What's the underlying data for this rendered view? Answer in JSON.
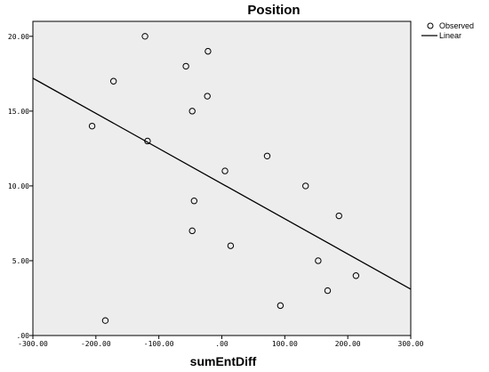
{
  "chart_data": {
    "type": "scatter",
    "title": "Position",
    "xlabel": "sumEntDiff",
    "ylabel": "",
    "xlim": [
      -300,
      300
    ],
    "ylim": [
      0,
      21
    ],
    "xticks": [
      -300,
      -200,
      -100,
      0,
      100,
      200,
      300
    ],
    "xtick_labels": [
      "-300.00",
      "-200.00",
      "-100.00",
      ".00",
      "100.00",
      "200.00",
      "300.00"
    ],
    "yticks": [
      0,
      5,
      10,
      15,
      20
    ],
    "ytick_labels": [
      ".00",
      "5.00",
      "10.00",
      "15.00",
      "20.00"
    ],
    "grid": false,
    "background": "#ededed",
    "legend_position": "top-right",
    "series": [
      {
        "name": "Observed",
        "kind": "points",
        "marker": "open-circle",
        "x": [
          -122,
          -22,
          -57,
          -172,
          -23,
          -206,
          -47,
          -118,
          72,
          5,
          133,
          -44,
          186,
          -47,
          14,
          153,
          213,
          168,
          93,
          -185
        ],
        "y": [
          20,
          19,
          18,
          17,
          16,
          14,
          15,
          13,
          12,
          11,
          10,
          9,
          8,
          7,
          6,
          5,
          4,
          3,
          2,
          1
        ]
      },
      {
        "name": "Linear",
        "kind": "fit-line",
        "x": [
          -300,
          300
        ],
        "y": [
          17.2,
          3.1
        ]
      }
    ]
  }
}
